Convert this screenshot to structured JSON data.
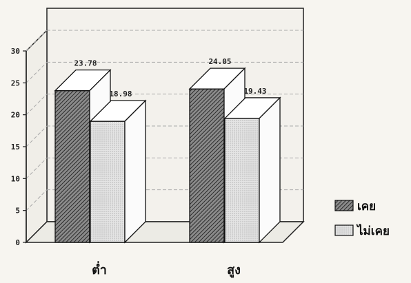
{
  "chart_data": {
    "type": "bar",
    "categories": [
      "ต่ำ",
      "สูง"
    ],
    "series": [
      {
        "name": "เคย",
        "values": [
          23.78,
          24.05
        ],
        "labels": [
          "23.78",
          "24.05"
        ]
      },
      {
        "name": "ไม่เคย",
        "values": [
          18.98,
          19.43
        ],
        "labels": [
          "18.98",
          "19.43"
        ]
      }
    ],
    "ylim": [
      0,
      30
    ],
    "yticks": [
      "0",
      "5",
      "10",
      "15",
      "20",
      "25",
      "30"
    ],
    "grid": true,
    "legend": "right",
    "colors": {
      "series1": "#6b6b6b",
      "series2": "#d6d6d6",
      "frame": "#222222"
    }
  }
}
